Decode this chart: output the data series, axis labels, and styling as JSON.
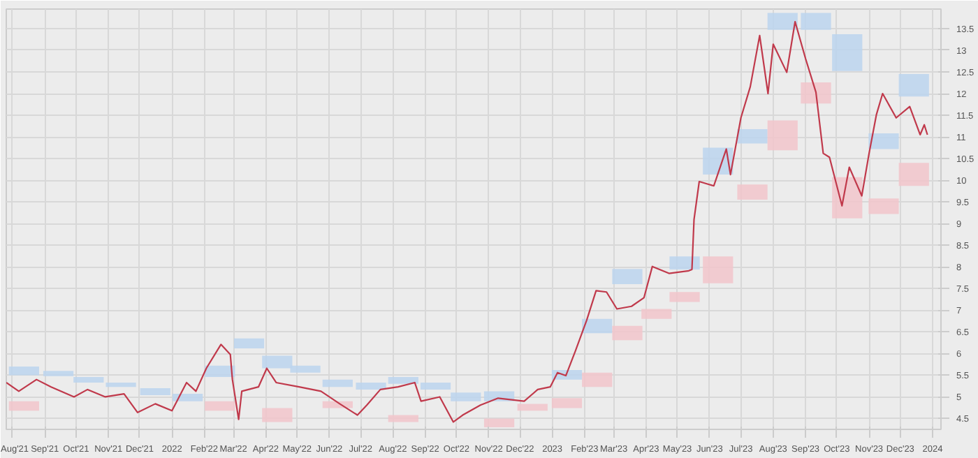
{
  "chart_data": {
    "type": "line",
    "grid": true,
    "xlim": [
      "2021-07-26",
      "2024-01-09"
    ],
    "ylim": [
      4.25,
      13.95
    ],
    "yticks": [
      4.5,
      5,
      5.5,
      6,
      6.5,
      7,
      7.5,
      8,
      8.5,
      9,
      9.5,
      10,
      10.5,
      11,
      11.5,
      12,
      12.5,
      13,
      13.5
    ],
    "xticks": [
      {
        "value": "2021-08-01",
        "label": "Aug'21"
      },
      {
        "value": "2021-09-01",
        "label": "Sep'21"
      },
      {
        "value": "2021-10-01",
        "label": "Oct'21"
      },
      {
        "value": "2021-11-01",
        "label": "Nov'21"
      },
      {
        "value": "2021-12-01",
        "label": "Dec'21"
      },
      {
        "value": "2022-01-01",
        "label": "2022"
      },
      {
        "value": "2022-02-01",
        "label": "Feb'22"
      },
      {
        "value": "2022-03-01",
        "label": "Mar'22"
      },
      {
        "value": "2022-04-01",
        "label": "Apr'22"
      },
      {
        "value": "2022-05-01",
        "label": "May'22"
      },
      {
        "value": "2022-06-01",
        "label": "Jun'22"
      },
      {
        "value": "2022-07-01",
        "label": "Jul'22"
      },
      {
        "value": "2022-08-01",
        "label": "Aug'22"
      },
      {
        "value": "2022-09-01",
        "label": "Sep'22"
      },
      {
        "value": "2022-10-01",
        "label": "Oct'22"
      },
      {
        "value": "2022-11-01",
        "label": "Nov'22"
      },
      {
        "value": "2022-12-01",
        "label": "Dec'22"
      },
      {
        "value": "2023-01-01",
        "label": "2023"
      },
      {
        "value": "2023-02-01",
        "label": "Feb'23"
      },
      {
        "value": "2023-03-01",
        "label": "Mar'23"
      },
      {
        "value": "2023-04-01",
        "label": "Apr'23"
      },
      {
        "value": "2023-05-01",
        "label": "May'23"
      },
      {
        "value": "2023-06-01",
        "label": "Jun'23"
      },
      {
        "value": "2023-07-01",
        "label": "Jul'23"
      },
      {
        "value": "2023-08-01",
        "label": "Aug'23"
      },
      {
        "value": "2023-09-01",
        "label": "Sep'23"
      },
      {
        "value": "2023-10-01",
        "label": "Oct'23"
      },
      {
        "value": "2023-11-01",
        "label": "Nov'23"
      },
      {
        "value": "2023-12-01",
        "label": "Dec'23"
      },
      {
        "value": "2024-01-01",
        "label": "2024"
      }
    ],
    "series": [
      {
        "type": "bar",
        "color": "#bcd5ee",
        "x": [
          "2021-08-12",
          "2021-09-14",
          "2021-10-13",
          "2021-11-13",
          "2021-12-16",
          "2022-01-16",
          "2022-02-16",
          "2022-03-16",
          "2022-04-12",
          "2022-05-09",
          "2022-06-09",
          "2022-07-11",
          "2022-08-11",
          "2022-09-11",
          "2022-10-10",
          "2022-11-11",
          "2023-01-15",
          "2023-02-13",
          "2023-03-14",
          "2023-05-08",
          "2023-06-09",
          "2023-07-12",
          "2023-08-10",
          "2023-09-11",
          "2023-10-11",
          "2023-11-15",
          "2023-12-14"
        ],
        "base": [
          5.5,
          5.48,
          5.33,
          5.23,
          5.04,
          4.9,
          5.46,
          6.12,
          5.66,
          5.56,
          5.23,
          5.17,
          5.3,
          5.17,
          4.9,
          4.9,
          5.4,
          6.47,
          7.6,
          7.94,
          10.13,
          10.85,
          13.47,
          13.47,
          12.52,
          10.72,
          11.93
        ],
        "values": [
          0.2,
          0.12,
          0.13,
          0.1,
          0.16,
          0.17,
          0.26,
          0.23,
          0.29,
          0.16,
          0.17,
          0.16,
          0.16,
          0.16,
          0.2,
          0.23,
          0.22,
          0.33,
          0.35,
          0.3,
          0.62,
          0.33,
          0.39,
          0.39,
          0.85,
          0.36,
          0.52
        ]
      },
      {
        "type": "bar",
        "color": "#f2c6cb",
        "x": [
          "2021-08-12",
          "2022-02-16",
          "2022-04-12",
          "2022-06-09",
          "2022-08-11",
          "2022-11-11",
          "2022-12-13",
          "2023-01-15",
          "2023-02-13",
          "2023-03-14",
          "2023-04-11",
          "2023-05-08",
          "2023-06-09",
          "2023-07-12",
          "2023-08-10",
          "2023-09-11",
          "2023-10-11",
          "2023-11-15",
          "2023-12-14"
        ],
        "base": [
          4.68,
          4.68,
          4.42,
          4.74,
          4.42,
          4.3,
          4.68,
          4.74,
          5.23,
          6.31,
          6.8,
          7.19,
          7.62,
          9.55,
          10.69,
          11.77,
          9.12,
          9.22,
          9.87
        ],
        "values": [
          0.22,
          0.22,
          0.32,
          0.16,
          0.16,
          0.2,
          0.16,
          0.23,
          0.33,
          0.33,
          0.23,
          0.23,
          0.62,
          0.35,
          0.69,
          0.49,
          0.95,
          0.36,
          0.53
        ]
      },
      {
        "color": "#c0394b",
        "x": [
          "2021-07-26",
          "2021-08-07",
          "2021-08-24",
          "2021-09-07",
          "2021-09-29",
          "2021-10-12",
          "2021-10-29",
          "2021-11-16",
          "2021-11-29",
          "2021-12-16",
          "2022-01-01",
          "2022-01-15",
          "2022-01-24",
          "2022-02-03",
          "2022-02-17",
          "2022-02-26",
          "2022-02-28",
          "2022-03-06",
          "2022-03-09",
          "2022-03-25",
          "2022-04-02",
          "2022-04-11",
          "2022-05-03",
          "2022-05-24",
          "2022-06-11",
          "2022-06-28",
          "2022-07-07",
          "2022-07-20",
          "2022-08-06",
          "2022-08-22",
          "2022-08-28",
          "2022-09-15",
          "2022-09-28",
          "2022-10-07",
          "2022-10-24",
          "2022-11-10",
          "2022-12-05",
          "2022-12-18",
          "2022-12-30",
          "2023-01-06",
          "2023-01-14",
          "2023-01-23",
          "2023-02-03",
          "2023-02-12",
          "2023-02-22",
          "2023-03-04",
          "2023-03-18",
          "2023-03-30",
          "2023-04-07",
          "2023-04-23",
          "2023-05-12",
          "2023-05-15",
          "2023-05-17",
          "2023-05-22",
          "2023-06-05",
          "2023-06-17",
          "2023-06-21",
          "2023-07-01",
          "2023-07-10",
          "2023-07-19",
          "2023-07-27",
          "2023-08-01",
          "2023-08-14",
          "2023-08-22",
          "2023-09-01",
          "2023-09-11",
          "2023-09-18",
          "2023-09-24",
          "2023-10-06",
          "2023-10-13",
          "2023-10-25",
          "2023-11-01",
          "2023-11-08",
          "2023-11-14",
          "2023-11-27",
          "2023-12-10",
          "2023-12-20",
          "2023-12-24",
          "2023-12-27"
        ],
        "values": [
          5.33,
          5.13,
          5.4,
          5.23,
          5.0,
          5.17,
          5.0,
          5.07,
          4.64,
          4.84,
          4.68,
          5.33,
          5.13,
          5.66,
          6.21,
          5.98,
          5.4,
          4.48,
          5.13,
          5.23,
          5.66,
          5.33,
          5.23,
          5.13,
          4.84,
          4.58,
          4.81,
          5.17,
          5.23,
          5.33,
          4.9,
          5.0,
          4.42,
          4.58,
          4.81,
          4.97,
          4.9,
          5.17,
          5.23,
          5.56,
          5.49,
          6.05,
          6.77,
          7.45,
          7.42,
          7.03,
          7.09,
          7.29,
          8.01,
          7.85,
          7.91,
          7.94,
          9.09,
          9.97,
          9.87,
          10.72,
          10.13,
          11.44,
          12.16,
          13.34,
          12.0,
          13.14,
          12.49,
          13.66,
          12.81,
          12.03,
          10.62,
          10.53,
          9.41,
          10.3,
          9.64,
          10.62,
          11.51,
          12.0,
          11.44,
          11.7,
          11.05,
          11.28,
          11.05
        ]
      }
    ]
  }
}
